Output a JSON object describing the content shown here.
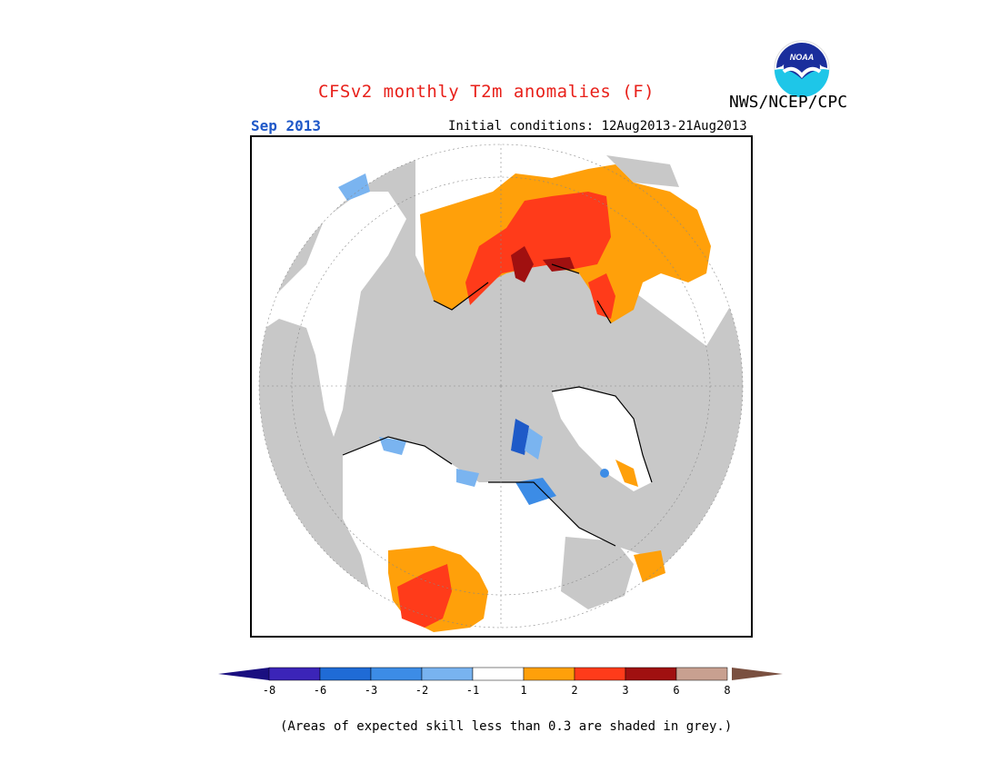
{
  "header": {
    "title": "CFSv2 monthly T2m anomalies (F)",
    "agency": "NWS/NCEP/CPC",
    "logo_text": "NOAA",
    "month": "Sep 2013",
    "initial_conditions": "Initial conditions: 12Aug2013-21Aug2013"
  },
  "map": {
    "projection": "north-polar-stereographic",
    "colors": {
      "ocean_grey": "#c8c8c8",
      "land_white": "#ffffff",
      "orange": "#ffa00a",
      "red": "#ff3b1a",
      "dark_red": "#a01010",
      "light_blue": "#7ab4f0",
      "mid_blue": "#3c8ce6",
      "dark_blue": "#1e5ac8"
    }
  },
  "legend": {
    "tick_labels": [
      "-8",
      "-6",
      "-3",
      "-2",
      "-1",
      "1",
      "2",
      "3",
      "6",
      "8"
    ],
    "bins": [
      {
        "color": "#3b24b8"
      },
      {
        "color": "#1f6bd6"
      },
      {
        "color": "#3c8ce6"
      },
      {
        "color": "#78b3f0"
      },
      {
        "color": "#ffffff"
      },
      {
        "color": "#ffa00a"
      },
      {
        "color": "#ff3b1a"
      },
      {
        "color": "#a01010"
      },
      {
        "color": "#c8a090"
      }
    ],
    "low_end_color": "#1a0f80",
    "high_end_color": "#7a5040"
  },
  "footnote": "(Areas of expected skill less than 0.3 are shaded in grey.)"
}
